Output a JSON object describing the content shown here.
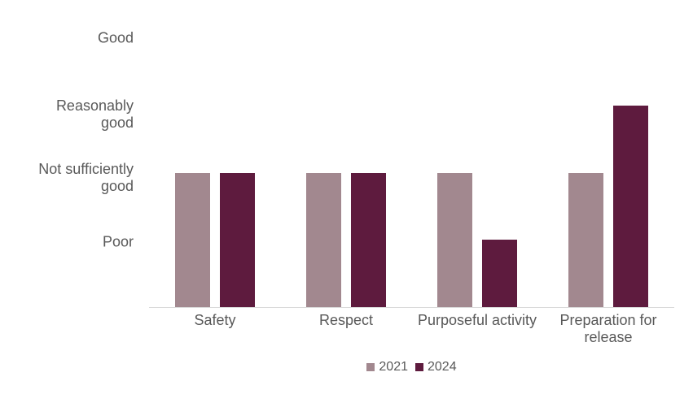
{
  "chart_data": {
    "type": "bar",
    "title": "",
    "categories": [
      "Safety",
      "Respect",
      "Purposeful activity",
      "Preparation for\nrelease"
    ],
    "series": [
      {
        "name": "2021",
        "color": "#a2888f",
        "values": [
          2,
          2,
          2,
          2
        ]
      },
      {
        "name": "2024",
        "color": "#5e1b3e",
        "values": [
          2,
          2,
          1,
          3
        ]
      }
    ],
    "y_axis": {
      "tick_labels": [
        "Good",
        "Reasonably\ngood",
        "Not sufficiently\ngood",
        "Poor"
      ],
      "tick_values": [
        4,
        3,
        2,
        1
      ],
      "min": 0,
      "max": 4
    },
    "value_scale": {
      "1": "Poor",
      "2": "Not sufficiently good",
      "3": "Reasonably good",
      "4": "Good"
    },
    "grid": false,
    "legend_position": "bottom"
  },
  "legend": {
    "items": [
      "2021",
      "2024"
    ]
  },
  "colors": {
    "series_2021": "#a2888f",
    "series_2024": "#5e1b3e",
    "axis_line": "#d9d9d9",
    "label_text": "#595959"
  }
}
